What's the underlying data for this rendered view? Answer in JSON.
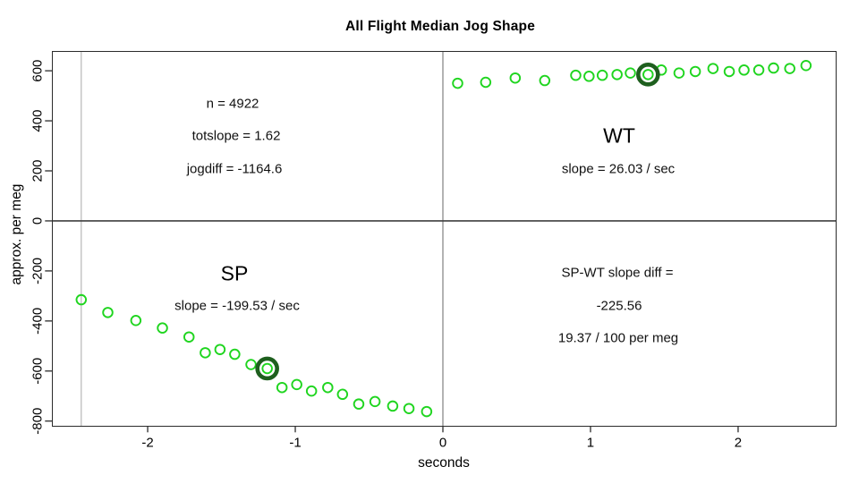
{
  "chart": {
    "title": "All Flight Median Jog Shape",
    "xlabel": "seconds",
    "ylabel": "approx. per meg",
    "annotations": {
      "n": "n = 4922",
      "totslope": "totslope = 1.62",
      "jogdiff": "jogdiff = -1164.6",
      "wt_label": "WT",
      "wt_slope": "slope = 26.03 / sec",
      "sp_label": "SP",
      "sp_slope": "slope = -199.53 / sec",
      "diff_line1": "SP-WT slope diff =",
      "diff_line2": "-225.56",
      "diff_line3": "19.37 / 100 per meg"
    }
  },
  "chart_data": {
    "type": "scatter",
    "title": "All Flight Median Jog Shape",
    "xlabel": "seconds",
    "ylabel": "approx. per meg",
    "x_ticks": [
      -2,
      -1,
      0,
      1,
      2
    ],
    "y_ticks": [
      600,
      400,
      200,
      0,
      -200,
      -400,
      -600,
      -800
    ],
    "x_range": [
      -2.647,
      2.664
    ],
    "y_range": [
      -820,
      678
    ],
    "grid": false,
    "legend": "none",
    "marker": "open-circle",
    "series": [
      {
        "name": "SP",
        "slope_per_sec": -199.53,
        "highlight_index": 9,
        "x": [
          -2.45,
          -2.27,
          -2.08,
          -1.9,
          -1.72,
          -1.61,
          -1.51,
          -1.41,
          -1.3,
          -1.19,
          -1.09,
          -0.99,
          -0.89,
          -0.78,
          -0.68,
          -0.57,
          -0.46,
          -0.34,
          -0.23,
          -0.11
        ],
        "y": [
          -315,
          -366,
          -398,
          -428,
          -464,
          -527,
          -514,
          -533,
          -574,
          -590,
          -666,
          -654,
          -680,
          -666,
          -693,
          -732,
          -722,
          -740,
          -750,
          -762
        ]
      },
      {
        "name": "WT",
        "slope_per_sec": 26.03,
        "highlight_index": 9,
        "x": [
          0.1,
          0.29,
          0.49,
          0.69,
          0.9,
          0.99,
          1.08,
          1.18,
          1.27,
          1.39,
          1.48,
          1.6,
          1.71,
          1.83,
          1.94,
          2.04,
          2.14,
          2.24,
          2.35,
          2.46
        ],
        "y": [
          550,
          554,
          571,
          561,
          582,
          578,
          582,
          585,
          591,
          585,
          603,
          591,
          597,
          609,
          597,
          603,
          603,
          611,
          609,
          621
        ]
      }
    ],
    "reference_lines": {
      "horizontal_black": [
        0
      ],
      "vertical_gray_dark": [
        0
      ],
      "vertical_gray_light": [
        -2.45
      ]
    },
    "stats": {
      "n": 4922,
      "totslope": 1.62,
      "jogdiff": -1164.6,
      "sp_wt_slope_diff": -225.56,
      "diff_rate": "19.37 / 100 per meg"
    }
  },
  "colors": {
    "point_green": "#1fd51f",
    "highlight_dark_green": "#1e5f1e",
    "axis": "#2b2b2b",
    "zero_h_line": "#3f3f3f",
    "zero_v_line": "#8a8a8a",
    "left_gray_line": "#b8b8b8",
    "text": "#000000"
  }
}
